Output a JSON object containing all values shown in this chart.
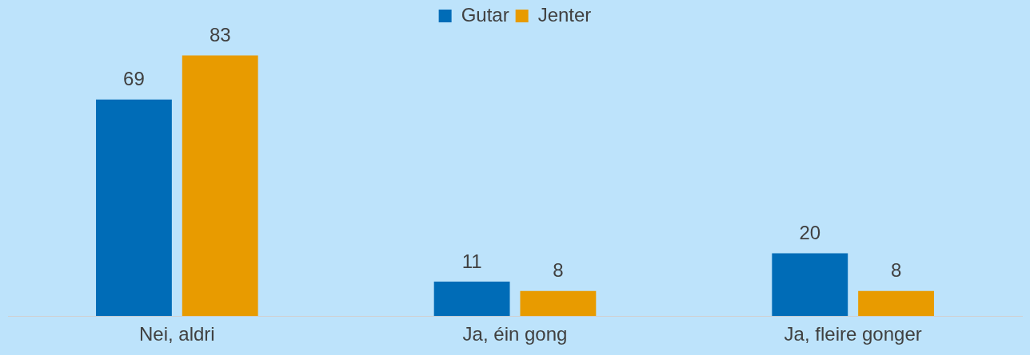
{
  "chart_data": {
    "type": "bar",
    "categories": [
      "Nei, aldri",
      "Ja, éin gong",
      "Ja, fleire gonger"
    ],
    "series": [
      {
        "name": "Gutar",
        "color": "#006cb7",
        "values": [
          69,
          11,
          20
        ]
      },
      {
        "name": "Jenter",
        "color": "#e89b00",
        "values": [
          83,
          8,
          8
        ]
      }
    ],
    "data_labels": true,
    "legend": "top",
    "grid": false
  }
}
